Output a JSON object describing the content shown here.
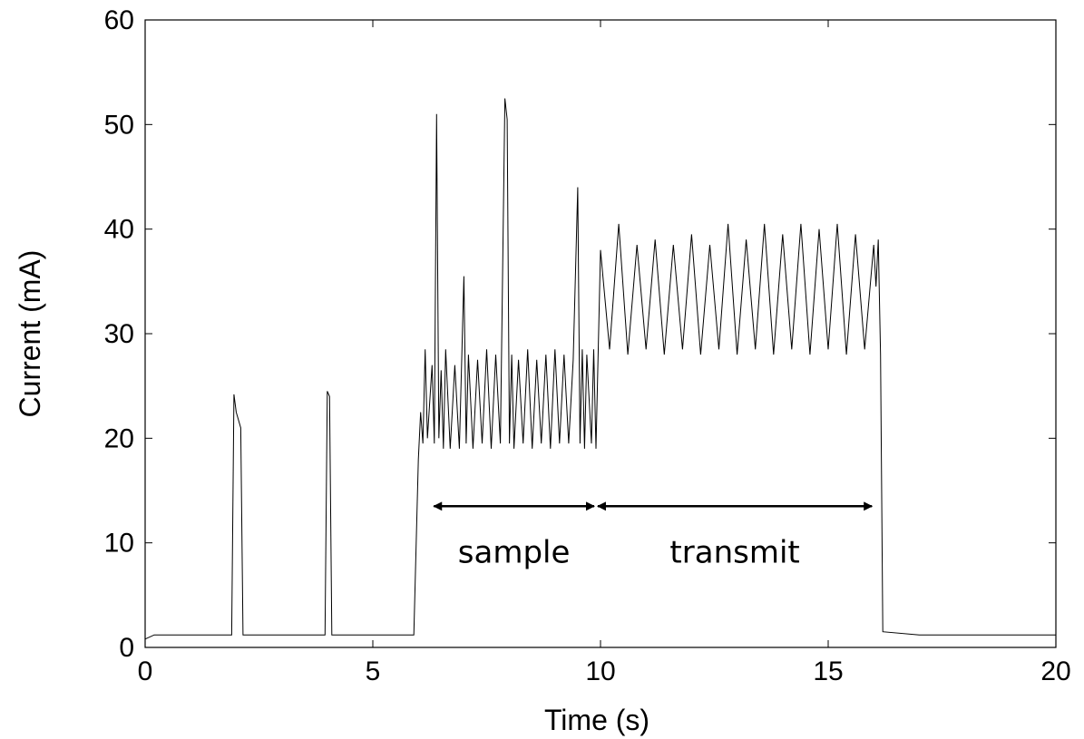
{
  "chart_data": {
    "type": "line",
    "title": "",
    "xlabel": "Time (s)",
    "ylabel": "Current (mA)",
    "xlim": [
      0,
      20
    ],
    "ylim": [
      0,
      60
    ],
    "xticks": [
      0,
      5,
      10,
      15,
      20
    ],
    "yticks": [
      0,
      10,
      20,
      30,
      40,
      50,
      60
    ],
    "grid": false,
    "legend": "none",
    "line_color": "#000000",
    "series": [
      {
        "x": [
          0,
          0.2,
          1.9,
          1.95,
          2.0,
          2.1,
          2.15,
          2.2,
          3.95,
          4.0,
          4.05,
          4.1,
          4.15,
          5.9,
          6.0,
          6.05,
          6.1,
          6.15,
          6.2,
          6.3,
          6.35,
          6.4,
          6.45,
          6.5,
          6.55,
          6.6,
          6.7,
          6.8,
          6.9,
          7.0,
          7.05,
          7.1,
          7.2,
          7.3,
          7.4,
          7.5,
          7.6,
          7.7,
          7.8,
          7.9,
          7.95,
          8.0,
          8.05,
          8.1,
          8.2,
          8.3,
          8.4,
          8.5,
          8.6,
          8.7,
          8.8,
          8.9,
          9.0,
          9.1,
          9.2,
          9.3,
          9.4,
          9.5,
          9.55,
          9.6,
          9.65,
          9.7,
          9.8,
          9.85,
          9.9,
          10.0,
          10.2,
          10.4,
          10.6,
          10.8,
          11.0,
          11.2,
          11.4,
          11.6,
          11.8,
          12.0,
          12.2,
          12.4,
          12.6,
          12.8,
          13.0,
          13.2,
          13.4,
          13.6,
          13.8,
          14.0,
          14.2,
          14.4,
          14.6,
          14.8,
          15.0,
          15.2,
          15.4,
          15.6,
          15.8,
          16.0,
          16.05,
          16.1,
          16.15,
          16.2,
          17.0,
          18.0,
          19.0,
          20.0
        ],
        "y": [
          0.8,
          1.2,
          1.2,
          24.2,
          22.5,
          21.0,
          1.2,
          1.2,
          1.2,
          24.5,
          24.0,
          1.2,
          1.2,
          1.2,
          18.0,
          22.5,
          19.5,
          28.5,
          20.0,
          27.0,
          19.5,
          51.0,
          20.0,
          26.5,
          19.0,
          28.5,
          19.0,
          27.0,
          19.0,
          35.5,
          19.5,
          28.0,
          19.0,
          27.5,
          19.5,
          28.5,
          19.0,
          28.0,
          19.5,
          52.5,
          50.5,
          19.5,
          28.0,
          19.0,
          27.5,
          19.5,
          28.5,
          19.0,
          27.5,
          19.5,
          28.0,
          19.0,
          28.5,
          19.5,
          28.0,
          19.5,
          27.5,
          44.0,
          19.5,
          28.5,
          19.0,
          28.0,
          19.5,
          28.5,
          19.0,
          38.0,
          28.5,
          40.5,
          28.0,
          38.5,
          28.5,
          39.0,
          28.0,
          38.5,
          28.5,
          39.5,
          28.0,
          38.5,
          28.5,
          40.5,
          28.0,
          39.0,
          28.5,
          40.5,
          28.0,
          39.5,
          28.5,
          40.5,
          28.0,
          40.0,
          28.5,
          40.5,
          28.0,
          39.5,
          28.5,
          38.5,
          34.5,
          39.0,
          28.0,
          1.5,
          1.2,
          1.2,
          1.2,
          1.2
        ]
      }
    ],
    "annotations": [
      {
        "text": "sample",
        "x_start": 6.3,
        "x_end": 9.9,
        "y": 13.5
      },
      {
        "text": "transmit",
        "x_start": 9.9,
        "x_end": 16.0,
        "y": 13.5
      }
    ]
  }
}
